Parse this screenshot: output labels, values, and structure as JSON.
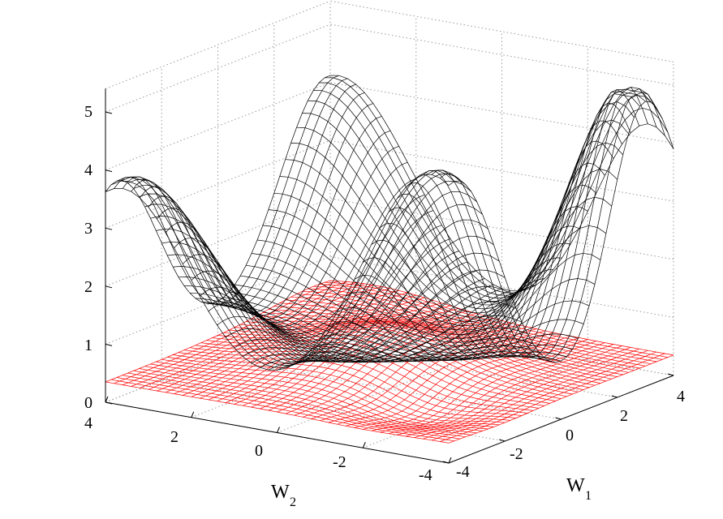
{
  "chart_data": {
    "type": "surface",
    "title": "",
    "xlabel": "W",
    "xlabel_sub": "1",
    "ylabel": "W",
    "ylabel_sub": "2",
    "zlabel": "",
    "xlim": [
      -4,
      4
    ],
    "ylim": [
      -4,
      4
    ],
    "zlim": [
      0,
      5
    ],
    "x_ticks": [
      "-4",
      "-2",
      "0",
      "2",
      "4"
    ],
    "y_ticks": [
      "4",
      "2",
      "0",
      "-2",
      "-4"
    ],
    "z_ticks": [
      "0",
      "1",
      "2",
      "3",
      "4",
      "5"
    ],
    "grid": true,
    "legend": "none",
    "series": [
      {
        "color": "#000000",
        "style": "wireframe mesh",
        "grid_lines": 41,
        "peak_value": 5.0,
        "min_value": 0.55,
        "corner_values": {
          "w1_-4_w2_-4": 4.6,
          "w1_4_w2_-4": 3.2,
          "w1_-4_w2_4": 3.9,
          "w1_4_w2_4": 4.2
        }
      },
      {
        "color": "#ff0000",
        "style": "wireframe mesh",
        "grid_lines": 41,
        "peak_value": 1.15,
        "min_value": 0.05,
        "base_value": 0.5
      }
    ]
  }
}
